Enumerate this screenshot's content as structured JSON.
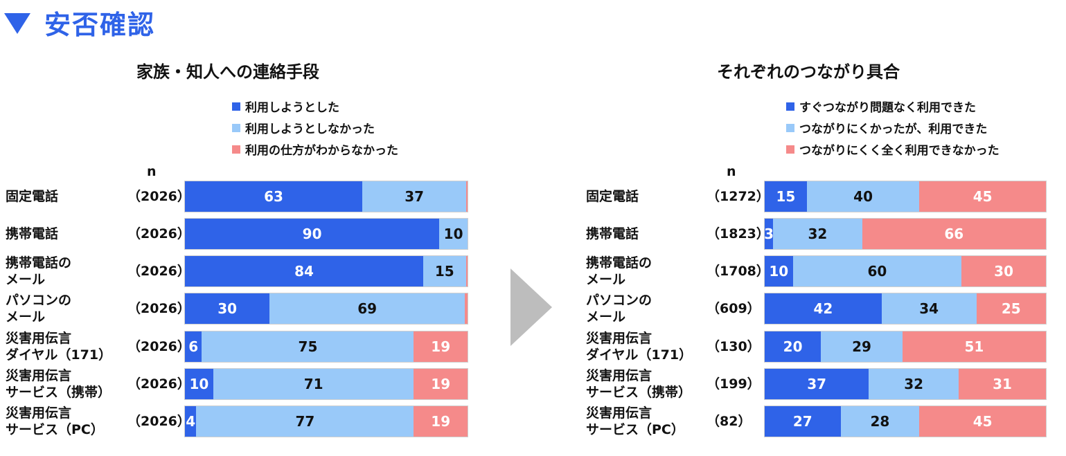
{
  "heading": "安否確認",
  "n_header": "n",
  "colors": {
    "series0": "#2f63e8",
    "series1": "#99c9f9",
    "series2": "#f58a8a",
    "heading": "#2f63e8",
    "arrow": "#bdbdbd"
  },
  "chart_data": [
    {
      "type": "bar",
      "orientation": "horizontal",
      "stacked": true,
      "unit": "%",
      "title": "家族・知人への連絡手段",
      "legend_placement": "top",
      "categories": [
        [
          "固定電話"
        ],
        [
          "携帯電話"
        ],
        [
          "携帯電話の",
          "メール"
        ],
        [
          "パソコンの",
          "メール"
        ],
        [
          "災害用伝言",
          "ダイヤル（171）"
        ],
        [
          "災害用伝言",
          "サービス（携帯）"
        ],
        [
          "災害用伝言",
          "サービス（PC）"
        ]
      ],
      "n": [
        "（2026）",
        "（2026）",
        "（2026）",
        "（2026）",
        "（2026）",
        "（2026）",
        "（2026）"
      ],
      "series": [
        {
          "name": "利用しようとした",
          "values": [
            63,
            90,
            84,
            30,
            6,
            10,
            4
          ]
        },
        {
          "name": "利用しようとしなかった",
          "values": [
            37,
            10,
            15,
            69,
            75,
            71,
            77
          ]
        },
        {
          "name": "利用の仕方がわからなかった",
          "values": [
            0.4,
            0,
            0.6,
            1,
            19,
            19,
            19
          ]
        }
      ],
      "data_labels": [
        [
          "63",
          "90",
          "84",
          "30",
          "6",
          "10",
          "4"
        ],
        [
          "37",
          "10",
          "15",
          "69",
          "75",
          "71",
          "77"
        ],
        [
          "",
          "",
          "",
          "",
          "19",
          "19",
          "19"
        ]
      ],
      "xlim": [
        0,
        100
      ]
    },
    {
      "type": "bar",
      "orientation": "horizontal",
      "stacked": true,
      "unit": "%",
      "title": "それぞれのつながり具合",
      "legend_placement": "top",
      "categories": [
        [
          "固定電話"
        ],
        [
          "携帯電話"
        ],
        [
          "携帯電話の",
          "メール"
        ],
        [
          "パソコンの",
          "メール"
        ],
        [
          "災害用伝言",
          "ダイヤル（171）"
        ],
        [
          "災害用伝言",
          "サービス（携帯）"
        ],
        [
          "災害用伝言",
          "サービス（PC）"
        ]
      ],
      "n": [
        "（1272）",
        "（1823）",
        "（1708）",
        "（609）",
        "（130）",
        "（199）",
        "（82）"
      ],
      "series": [
        {
          "name": "すぐつながり問題なく利用できた",
          "values": [
            15,
            3,
            10,
            42,
            20,
            37,
            27
          ]
        },
        {
          "name": "つながりにくかったが、利用できた",
          "values": [
            40,
            32,
            60,
            34,
            29,
            32,
            28
          ]
        },
        {
          "name": "つながりにくく全く利用できなかった",
          "values": [
            45,
            66,
            30,
            25,
            51,
            31,
            45
          ]
        }
      ],
      "data_labels": [
        [
          "15",
          "3",
          "10",
          "42",
          "20",
          "37",
          "27"
        ],
        [
          "40",
          "32",
          "60",
          "34",
          "29",
          "32",
          "28"
        ],
        [
          "45",
          "66",
          "30",
          "25",
          "51",
          "31",
          "45"
        ]
      ],
      "xlim": [
        0,
        100
      ]
    }
  ]
}
